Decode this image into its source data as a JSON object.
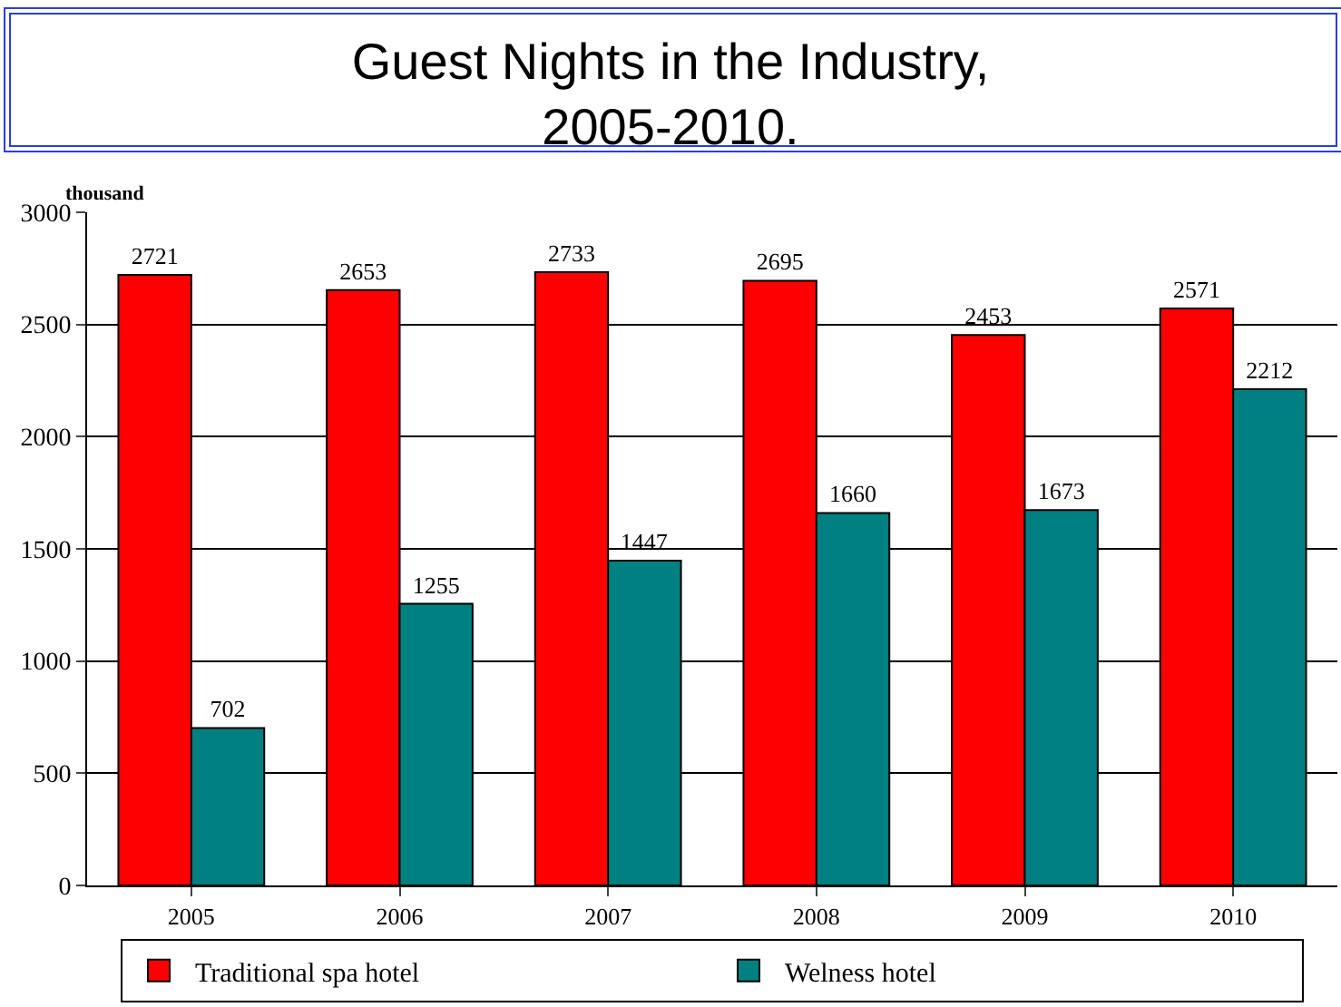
{
  "chart_data": {
    "type": "bar",
    "title": "Guest Nights in the Industry,\n2005-2010.",
    "ylabel": "thousand",
    "categories": [
      "2005",
      "2006",
      "2007",
      "2008",
      "2009",
      "2010"
    ],
    "series": [
      {
        "name": "Traditional spa hotel",
        "color": "#ff0000",
        "values": [
          2721,
          2653,
          2733,
          2695,
          2453,
          2571
        ]
      },
      {
        "name": "Welness hotel",
        "color": "#008080",
        "values": [
          702,
          1255,
          1447,
          1660,
          1673,
          2212
        ]
      }
    ],
    "ylim": [
      0,
      3000
    ],
    "yticks": [
      0,
      500,
      1000,
      1500,
      2000,
      2500,
      3000
    ],
    "grid": "y",
    "legend": "bottom",
    "data_labels": true
  }
}
